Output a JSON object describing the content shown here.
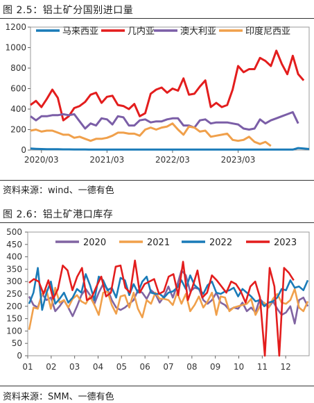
{
  "figures": [
    {
      "title": "图 2.5：铝土矿分国别进口量",
      "source": "资料来源：wind、一德有色"
    },
    {
      "title": "图 2.6：铝土矿港口库存",
      "source": "资料来源：SMM、一德有色"
    }
  ],
  "chart_data": [
    {
      "type": "line",
      "title": "",
      "xlabel": "",
      "ylabel": "",
      "ylim": [
        0,
        1200
      ],
      "yticks": [
        0,
        200,
        400,
        600,
        800,
        1000,
        1200
      ],
      "x_ticks": [
        "2020/03",
        "2021/03",
        "2022/03",
        "2023/03"
      ],
      "x_start": "2020/01",
      "grid": false,
      "legend": "top",
      "series": [
        {
          "name": "马来西亚",
          "color": "#1a7bb8",
          "values": [
            15,
            12,
            10,
            9,
            8,
            8,
            7,
            7,
            6,
            6,
            6,
            5,
            5,
            5,
            5,
            5,
            5,
            5,
            5,
            5,
            5,
            5,
            5,
            5,
            5,
            5,
            5,
            5,
            5,
            5,
            5,
            5,
            5,
            5,
            5,
            5,
            5,
            5,
            5,
            5,
            5,
            5,
            5,
            5,
            5,
            5,
            5,
            5,
            5,
            20,
            15,
            10
          ]
        },
        {
          "name": "几内亚",
          "color": "#e31d1d",
          "values": [
            440,
            480,
            420,
            500,
            590,
            510,
            290,
            330,
            410,
            430,
            470,
            540,
            560,
            460,
            520,
            530,
            440,
            430,
            400,
            450,
            330,
            360,
            550,
            590,
            610,
            560,
            600,
            580,
            700,
            540,
            550,
            620,
            680,
            420,
            460,
            420,
            440,
            590,
            820,
            760,
            790,
            790,
            900,
            870,
            820,
            970,
            840,
            740,
            920,
            740,
            680
          ]
        },
        {
          "name": "澳大利亚",
          "color": "#7b5ea7",
          "values": [
            330,
            290,
            330,
            330,
            340,
            340,
            350,
            340,
            350,
            280,
            210,
            260,
            240,
            310,
            300,
            250,
            330,
            320,
            240,
            240,
            290,
            300,
            270,
            280,
            280,
            300,
            310,
            310,
            240,
            240,
            220,
            290,
            300,
            260,
            270,
            270,
            270,
            260,
            250,
            210,
            200,
            210,
            300,
            260,
            290,
            310,
            330,
            350,
            370,
            260
          ]
        },
        {
          "name": "印度尼西亚",
          "color": "#f0a04b",
          "values": [
            190,
            200,
            180,
            190,
            190,
            170,
            150,
            150,
            120,
            130,
            110,
            90,
            110,
            110,
            120,
            140,
            170,
            170,
            160,
            160,
            140,
            200,
            220,
            200,
            220,
            230,
            260,
            200,
            150,
            230,
            220,
            180,
            190,
            130,
            140,
            150,
            160,
            100,
            90,
            100,
            130,
            80,
            60,
            80,
            40
          ]
        }
      ]
    },
    {
      "type": "line",
      "title": "",
      "xlabel": "",
      "ylabel": "",
      "ylim": [
        0,
        500
      ],
      "yticks": [
        0,
        50,
        100,
        150,
        200,
        250,
        300,
        350,
        400,
        450,
        500
      ],
      "x_ticks": [
        "01",
        "02",
        "03",
        "04",
        "05",
        "06",
        "07",
        "08",
        "09",
        "10",
        "11",
        "12"
      ],
      "grid": false,
      "legend": "top",
      "series": [
        {
          "name": "2020",
          "color": "#8064a2",
          "values": [
            240,
            205,
            195,
            250,
            225,
            235,
            180,
            200,
            225,
            195,
            160,
            200,
            245,
            270,
            245,
            210,
            255,
            290,
            270,
            225,
            195,
            185,
            195,
            210,
            225,
            265,
            255,
            230,
            265,
            250,
            215,
            240,
            280,
            235,
            285,
            345,
            325,
            260,
            275,
            270,
            225,
            210,
            225,
            255,
            215,
            205,
            185,
            195,
            190,
            215,
            180,
            195,
            175,
            230,
            210,
            195,
            220,
            190,
            165,
            175,
            200,
            130,
            225,
            235,
            200
          ]
        },
        {
          "name": "2021",
          "color": "#f0a04b",
          "values": [
            105,
            195,
            190,
            250,
            265,
            190,
            275,
            215,
            225,
            195,
            230,
            245,
            220,
            210,
            240,
            205,
            165,
            255,
            260,
            205,
            170,
            240,
            245,
            195,
            255,
            190,
            155,
            225,
            210,
            255,
            230,
            230,
            225,
            205,
            255,
            210,
            250,
            180,
            205,
            240,
            195,
            220,
            255,
            165,
            240,
            235,
            180,
            195,
            200,
            205,
            210,
            230,
            165,
            200,
            215,
            195,
            230,
            250,
            215,
            210,
            225,
            270,
            195,
            180,
            220
          ]
        },
        {
          "name": "2022",
          "color": "#1a7bb8",
          "values": [
            210,
            255,
            355,
            185,
            255,
            300,
            210,
            230,
            255,
            215,
            235,
            270,
            255,
            330,
            285,
            225,
            320,
            305,
            265,
            275,
            235,
            315,
            305,
            245,
            290,
            255,
            300,
            320,
            255,
            250,
            250,
            235,
            255,
            260,
            275,
            305,
            270,
            325,
            285,
            270,
            250,
            285,
            300,
            255,
            250,
            260,
            265,
            275,
            240,
            270,
            255,
            240,
            220,
            225,
            200,
            215,
            220,
            235,
            270,
            265,
            305,
            275,
            280,
            265,
            305
          ]
        },
        {
          "name": "2023",
          "color": "#e31d1d",
          "values": [
            295,
            310,
            300,
            250,
            305,
            230,
            270,
            365,
            345,
            265,
            320,
            355,
            225,
            235,
            280,
            320,
            240,
            255,
            360,
            365,
            275,
            255,
            385,
            255,
            290,
            300,
            310,
            250,
            260,
            320,
            330,
            245,
            380,
            225,
            280,
            345,
            235,
            255,
            325,
            305,
            280,
            255,
            300,
            290,
            260,
            215,
            280,
            300,
            235,
            0,
            355,
            280,
            0,
            355,
            335,
            305
          ]
        }
      ]
    }
  ]
}
